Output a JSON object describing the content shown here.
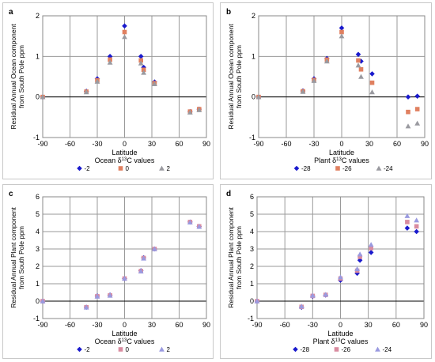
{
  "series_colors": {
    "blue": "#1a1acd",
    "orange": "#e08060",
    "gray": "#9a9aa0",
    "pink": "#d98ca0",
    "lav": "#9a9ae0"
  },
  "chart_data": [
    {
      "type": "scatter",
      "panel_label": "a",
      "ylabel_line1": "Residual Annual Ocean component",
      "ylabel_line2": "from South Pole ppm",
      "xlabel": "Latitude",
      "legend_title": "Ocean δ13C values",
      "legend_title_main": "Ocean δ",
      "legend_title_sup": "13",
      "legend_title_rest": "C values",
      "xlim": [
        -90,
        90
      ],
      "ylim": [
        -1,
        2
      ],
      "xticks": [
        -90,
        -60,
        -30,
        0,
        30,
        60,
        90
      ],
      "yticks": [
        -1,
        0,
        1,
        2
      ],
      "series": [
        {
          "name": "-2",
          "marker": "diamond",
          "color": "#1a1acd",
          "points": [
            [
              -90,
              0
            ],
            [
              -42,
              0.14
            ],
            [
              -30,
              0.45
            ],
            [
              -16,
              1.0
            ],
            [
              0,
              1.75
            ],
            [
              18,
              1.0
            ],
            [
              21,
              0.73
            ],
            [
              33,
              0.37
            ],
            [
              72,
              -0.36
            ],
            [
              82,
              -0.3
            ]
          ]
        },
        {
          "name": "0",
          "marker": "square",
          "color": "#e08060",
          "points": [
            [
              -90,
              0
            ],
            [
              -42,
              0.13
            ],
            [
              -30,
              0.41
            ],
            [
              -16,
              0.92
            ],
            [
              0,
              1.6
            ],
            [
              18,
              0.9
            ],
            [
              21,
              0.67
            ],
            [
              33,
              0.34
            ],
            [
              72,
              -0.36
            ],
            [
              82,
              -0.3
            ]
          ]
        },
        {
          "name": "2",
          "marker": "triangle",
          "color": "#9a9aa0",
          "points": [
            [
              -90,
              0
            ],
            [
              -42,
              0.12
            ],
            [
              -30,
              0.38
            ],
            [
              -16,
              0.85
            ],
            [
              0,
              1.48
            ],
            [
              18,
              0.83
            ],
            [
              21,
              0.6
            ],
            [
              33,
              0.32
            ],
            [
              72,
              -0.38
            ],
            [
              82,
              -0.32
            ]
          ]
        }
      ]
    },
    {
      "type": "scatter",
      "panel_label": "b",
      "ylabel_line1": "Residual Annual Ocean component",
      "ylabel_line2": "from South Pole ppm",
      "xlabel": "Latitude",
      "legend_title": "Plant δ13C values",
      "legend_title_main": "Plant δ",
      "legend_title_sup": "13",
      "legend_title_rest": "C values",
      "xlim": [
        -90,
        90
      ],
      "ylim": [
        -1,
        2
      ],
      "xticks": [
        -90,
        -60,
        -30,
        0,
        30,
        60,
        90
      ],
      "yticks": [
        -1,
        0,
        1,
        2
      ],
      "series": [
        {
          "name": "-28",
          "marker": "diamond",
          "color": "#1a1acd",
          "points": [
            [
              -90,
              0
            ],
            [
              -42,
              0.15
            ],
            [
              -30,
              0.45
            ],
            [
              -16,
              0.95
            ],
            [
              0,
              1.7
            ],
            [
              18,
              1.05
            ],
            [
              21,
              0.88
            ],
            [
              33,
              0.57
            ],
            [
              72,
              0.0
            ],
            [
              82,
              0.02
            ]
          ]
        },
        {
          "name": "-26",
          "marker": "square",
          "color": "#e08060",
          "points": [
            [
              -90,
              0
            ],
            [
              -42,
              0.14
            ],
            [
              -30,
              0.42
            ],
            [
              -16,
              0.92
            ],
            [
              0,
              1.6
            ],
            [
              18,
              0.9
            ],
            [
              21,
              0.68
            ],
            [
              33,
              0.35
            ],
            [
              72,
              -0.37
            ],
            [
              82,
              -0.3
            ]
          ]
        },
        {
          "name": "-24",
          "marker": "triangle",
          "color": "#9a9aa0",
          "points": [
            [
              -90,
              0
            ],
            [
              -42,
              0.13
            ],
            [
              -30,
              0.4
            ],
            [
              -16,
              0.88
            ],
            [
              0,
              1.5
            ],
            [
              18,
              0.78
            ],
            [
              21,
              0.5
            ],
            [
              33,
              0.12
            ],
            [
              72,
              -0.72
            ],
            [
              82,
              -0.65
            ]
          ]
        }
      ]
    },
    {
      "type": "scatter",
      "panel_label": "c",
      "ylabel_line1": "Residual Annual Plant component",
      "ylabel_line2": "from South Pole ppm",
      "xlabel": "Latitude",
      "legend_title": "Ocean δ13C values",
      "legend_title_main": "Ocean δ",
      "legend_title_sup": "13",
      "legend_title_rest": "C values",
      "xlim": [
        -90,
        90
      ],
      "ylim": [
        -1,
        6
      ],
      "xticks": [
        -90,
        -60,
        -30,
        0,
        30,
        60,
        90
      ],
      "yticks": [
        -1,
        0,
        1,
        2,
        3,
        4,
        5,
        6
      ],
      "series": [
        {
          "name": "-2",
          "marker": "diamond",
          "color": "#1a1acd",
          "points": [
            [
              -90,
              0
            ],
            [
              -42,
              -0.35
            ],
            [
              -30,
              0.3
            ],
            [
              -16,
              0.35
            ],
            [
              0,
              1.3
            ],
            [
              18,
              1.75
            ],
            [
              21,
              2.5
            ],
            [
              33,
              3.0
            ],
            [
              72,
              4.55
            ],
            [
              82,
              4.3
            ]
          ]
        },
        {
          "name": "0",
          "marker": "square",
          "color": "#d98ca0",
          "points": [
            [
              -90,
              0
            ],
            [
              -42,
              -0.35
            ],
            [
              -30,
              0.28
            ],
            [
              -16,
              0.33
            ],
            [
              0,
              1.3
            ],
            [
              18,
              1.73
            ],
            [
              21,
              2.48
            ],
            [
              33,
              3.0
            ],
            [
              72,
              4.55
            ],
            [
              82,
              4.3
            ]
          ]
        },
        {
          "name": "2",
          "marker": "triangle",
          "color": "#9a9ae0",
          "points": [
            [
              -90,
              0
            ],
            [
              -42,
              -0.36
            ],
            [
              -30,
              0.27
            ],
            [
              -16,
              0.32
            ],
            [
              0,
              1.3
            ],
            [
              18,
              1.72
            ],
            [
              21,
              2.46
            ],
            [
              33,
              3.0
            ],
            [
              72,
              4.53
            ],
            [
              82,
              4.28
            ]
          ]
        }
      ]
    },
    {
      "type": "scatter",
      "panel_label": "d",
      "ylabel_line1": "Residual Annual Plant component",
      "ylabel_line2": "from South Pole ppm",
      "xlabel": "Latitude",
      "legend_title": "Plant δ13C values",
      "legend_title_main": "Plant δ",
      "legend_title_sup": "13",
      "legend_title_rest": "C values",
      "xlim": [
        -90,
        90
      ],
      "ylim": [
        -1,
        6
      ],
      "xticks": [
        -90,
        -60,
        -30,
        0,
        30,
        60,
        90
      ],
      "yticks": [
        -1,
        0,
        1,
        2,
        3,
        4,
        5,
        6
      ],
      "series": [
        {
          "name": "-28",
          "marker": "diamond",
          "color": "#1a1acd",
          "points": [
            [
              -90,
              0
            ],
            [
              -42,
              -0.35
            ],
            [
              -30,
              0.28
            ],
            [
              -16,
              0.35
            ],
            [
              0,
              1.2
            ],
            [
              18,
              1.6
            ],
            [
              21,
              2.35
            ],
            [
              33,
              2.8
            ],
            [
              72,
              4.2
            ],
            [
              82,
              4.0
            ]
          ]
        },
        {
          "name": "-26",
          "marker": "square",
          "color": "#d98ca0",
          "points": [
            [
              -90,
              0
            ],
            [
              -42,
              -0.33
            ],
            [
              -30,
              0.3
            ],
            [
              -16,
              0.36
            ],
            [
              0,
              1.3
            ],
            [
              18,
              1.75
            ],
            [
              21,
              2.55
            ],
            [
              33,
              3.05
            ],
            [
              72,
              4.55
            ],
            [
              82,
              4.3
            ]
          ]
        },
        {
          "name": "-24",
          "marker": "triangle",
          "color": "#9a9ae0",
          "points": [
            [
              -90,
              0
            ],
            [
              -42,
              -0.3
            ],
            [
              -30,
              0.32
            ],
            [
              -16,
              0.38
            ],
            [
              0,
              1.38
            ],
            [
              18,
              1.85
            ],
            [
              21,
              2.7
            ],
            [
              33,
              3.25
            ],
            [
              72,
              4.9
            ],
            [
              82,
              4.65
            ]
          ]
        }
      ]
    }
  ]
}
